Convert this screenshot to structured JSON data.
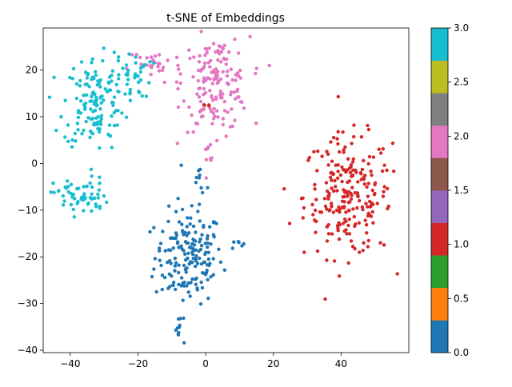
{
  "chart_data": {
    "type": "scatter",
    "title": "t-SNE of Embeddings",
    "xlabel": "",
    "ylabel": "",
    "xlim": [
      -48,
      60
    ],
    "ylim": [
      -40.5,
      29
    ],
    "xticks": [
      -40,
      -20,
      0,
      20,
      40
    ],
    "xtick_labels": [
      "−40",
      "−20",
      "0",
      "20",
      "40"
    ],
    "yticks": [
      -40,
      -30,
      -20,
      -10,
      0,
      10,
      20
    ],
    "ytick_labels": [
      "−40",
      "−30",
      "−20",
      "−10",
      "0",
      "10",
      "20"
    ],
    "grid": false,
    "colormap": "tab10",
    "colorbar": {
      "range": [
        0,
        3
      ],
      "ticks": [
        0.0,
        0.5,
        1.0,
        1.5,
        2.0,
        2.5,
        3.0
      ],
      "tick_labels": [
        "0.0",
        "0.5",
        "1.0",
        "1.5",
        "2.0",
        "2.5",
        "3.0"
      ],
      "colors": [
        "#1f77b4",
        "#ff7f0e",
        "#2ca02c",
        "#d62728",
        "#9467bd",
        "#8c564b",
        "#e377c2",
        "#7f7f7f",
        "#bcbd22",
        "#17becf"
      ]
    },
    "series": [
      {
        "label_value": 0,
        "color": "#1f77b4",
        "clusters": [
          {
            "cx": -5,
            "cy": -20,
            "sx": 5,
            "sy": 5,
            "n": 170
          },
          {
            "cx": -2,
            "cy": -5,
            "sx": 1.5,
            "sy": 4,
            "n": 15
          },
          {
            "cx": 9,
            "cy": -17,
            "sx": 1,
            "sy": 0.5,
            "n": 6
          },
          {
            "cx": -8,
            "cy": -36,
            "sx": 0.6,
            "sy": 1.2,
            "n": 10
          }
        ]
      },
      {
        "label_value": 1,
        "color": "#d62728",
        "clusters": [
          {
            "cx": 42,
            "cy": -7,
            "sx": 6.5,
            "sy": 6.5,
            "n": 230
          },
          {
            "cx": 0,
            "cy": 12,
            "sx": 1,
            "sy": 0.4,
            "n": 5
          }
        ]
      },
      {
        "label_value": 2,
        "color": "#e377c2",
        "clusters": [
          {
            "cx": 3,
            "cy": 17,
            "sx": 5,
            "sy": 5,
            "n": 160
          },
          {
            "cx": -15,
            "cy": 21,
            "sx": 4,
            "sy": 2,
            "n": 30
          },
          {
            "cx": 1,
            "cy": 2,
            "sx": 1,
            "sy": 1.5,
            "n": 8
          }
        ]
      },
      {
        "label_value": 3,
        "color": "#17becf",
        "clusters": [
          {
            "cx": -33,
            "cy": 13,
            "sx": 4.5,
            "sy": 5,
            "n": 140
          },
          {
            "cx": -22,
            "cy": 19,
            "sx": 3,
            "sy": 2.5,
            "n": 35
          },
          {
            "cx": -37,
            "cy": -7,
            "sx": 4,
            "sy": 2,
            "n": 60
          }
        ]
      }
    ]
  }
}
